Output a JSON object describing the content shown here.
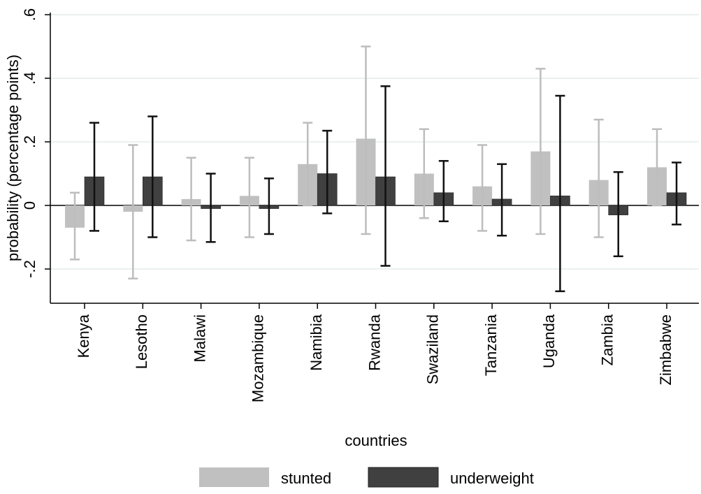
{
  "chart_data": {
    "type": "bar",
    "title": "",
    "xlabel": "countries",
    "ylabel": "probability (percentage points)",
    "ylim": [
      -0.3,
      0.6
    ],
    "yticks": [
      -0.2,
      0,
      0.2,
      0.4,
      0.6
    ],
    "ytick_labels": [
      "-.2",
      "0",
      ".2",
      ".4",
      ".6"
    ],
    "grid": true,
    "legend_position": "bottom",
    "error_bars": true,
    "categories": [
      "Kenya",
      "Lesotho",
      "Malawi",
      "Mozambique",
      "Namibia",
      "Rwanda",
      "Swaziland",
      "Tanzania",
      "Uganda",
      "Zambia",
      "Zimbabwe"
    ],
    "series": [
      {
        "name": "stunted",
        "color": "#c0c0c0",
        "values": [
          -0.07,
          -0.02,
          0.02,
          0.03,
          0.13,
          0.21,
          0.1,
          0.06,
          0.17,
          0.08,
          0.12
        ],
        "lower": [
          -0.17,
          -0.23,
          -0.11,
          -0.1,
          0.0,
          -0.09,
          -0.04,
          -0.08,
          -0.09,
          -0.1,
          0.0
        ],
        "upper": [
          0.04,
          0.19,
          0.15,
          0.15,
          0.26,
          0.5,
          0.24,
          0.19,
          0.43,
          0.27,
          0.24
        ]
      },
      {
        "name": "underweight",
        "color": "#404040",
        "values": [
          0.09,
          0.09,
          -0.01,
          -0.01,
          0.1,
          0.09,
          0.04,
          0.02,
          0.03,
          -0.03,
          0.04
        ],
        "lower": [
          -0.08,
          -0.1,
          -0.115,
          -0.09,
          -0.025,
          -0.19,
          -0.05,
          -0.095,
          -0.27,
          -0.16,
          -0.06
        ],
        "upper": [
          0.26,
          0.28,
          0.1,
          0.085,
          0.235,
          0.375,
          0.14,
          0.13,
          0.345,
          0.105,
          0.135
        ]
      }
    ]
  },
  "colors": {
    "grid": "#e3ecec",
    "axis": "#000000",
    "stunted_error": "#bdbdbd",
    "underweight_error": "#111111"
  }
}
